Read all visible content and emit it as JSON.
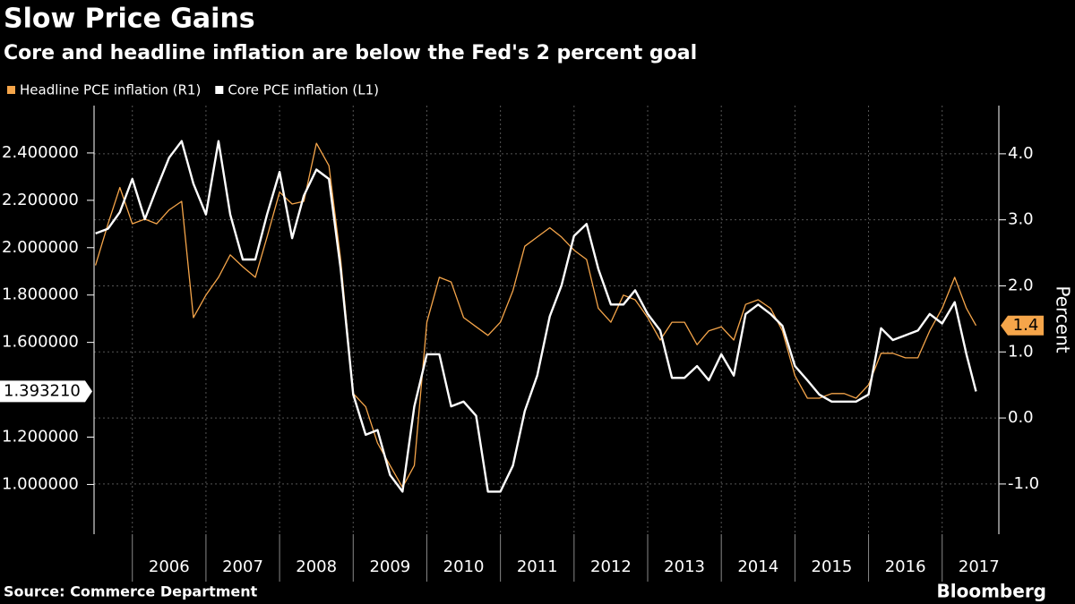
{
  "chart_data": {
    "type": "line",
    "title": "Slow Price Gains",
    "subtitle": "Core and headline inflation are below the Fed's 2 percent goal",
    "y2_label": "Percent",
    "source": "Source: Commerce Department",
    "brand": "Bloomberg",
    "xlim": [
      2005.48,
      2017.77
    ],
    "xticks": [
      2006,
      2007,
      2008,
      2009,
      2010,
      2011,
      2012,
      2013,
      2014,
      2015,
      2016,
      2017
    ],
    "ylim": [
      0.79,
      2.6
    ],
    "yticks": [
      {
        "value": 1.0,
        "label": "1.000000"
      },
      {
        "value": 1.2,
        "label": "1.200000"
      },
      {
        "value": 1.6,
        "label": "1.600000"
      },
      {
        "value": 1.8,
        "label": "1.800000"
      },
      {
        "value": 2.0,
        "label": "2.000000"
      },
      {
        "value": 2.2,
        "label": "2.200000"
      },
      {
        "value": 2.4,
        "label": "2.400000"
      }
    ],
    "y2lim": [
      -1.76,
      4.73
    ],
    "y2ticks": [
      {
        "value": -1,
        "label": "-1.0"
      },
      {
        "value": 0,
        "label": "0.0"
      },
      {
        "value": 1,
        "label": "1.0"
      },
      {
        "value": 2,
        "label": "2.0"
      },
      {
        "value": 3,
        "label": "3.0"
      },
      {
        "value": 4,
        "label": "4.0"
      }
    ],
    "grid": true,
    "x": [
      2005.5,
      2005.67,
      2005.83,
      2006.0,
      2006.17,
      2006.33,
      2006.5,
      2006.67,
      2006.83,
      2007.0,
      2007.17,
      2007.33,
      2007.5,
      2007.67,
      2007.83,
      2008.0,
      2008.17,
      2008.33,
      2008.5,
      2008.67,
      2008.83,
      2009.0,
      2009.17,
      2009.33,
      2009.5,
      2009.67,
      2009.83,
      2010.0,
      2010.17,
      2010.33,
      2010.5,
      2010.67,
      2010.83,
      2011.0,
      2011.17,
      2011.33,
      2011.5,
      2011.67,
      2011.83,
      2012.0,
      2012.17,
      2012.33,
      2012.5,
      2012.67,
      2012.83,
      2013.0,
      2013.17,
      2013.33,
      2013.5,
      2013.67,
      2013.83,
      2014.0,
      2014.17,
      2014.33,
      2014.5,
      2014.67,
      2014.83,
      2015.0,
      2015.17,
      2015.33,
      2015.5,
      2015.67,
      2015.83,
      2016.0,
      2016.17,
      2016.33,
      2016.5,
      2016.67,
      2016.83,
      2017.0,
      2017.17,
      2017.33,
      2017.46
    ],
    "series": [
      {
        "name": "Headline PCE inflation (R1)",
        "color": "#f5a54a",
        "axis": "y2",
        "last_label": "1.4",
        "values": [
          2.31,
          2.94,
          3.49,
          2.94,
          3.01,
          2.94,
          3.15,
          3.28,
          1.52,
          1.86,
          2.13,
          2.47,
          2.29,
          2.13,
          2.74,
          3.42,
          3.24,
          3.28,
          4.16,
          3.82,
          2.4,
          0.37,
          0.17,
          -0.38,
          -0.72,
          -1.05,
          -0.72,
          1.45,
          2.13,
          2.06,
          1.52,
          1.38,
          1.25,
          1.45,
          1.93,
          2.6,
          2.74,
          2.88,
          2.74,
          2.54,
          2.4,
          1.66,
          1.45,
          1.86,
          1.79,
          1.52,
          1.18,
          1.45,
          1.45,
          1.11,
          1.32,
          1.38,
          1.18,
          1.72,
          1.79,
          1.66,
          1.32,
          0.64,
          0.3,
          0.3,
          0.37,
          0.37,
          0.3,
          0.5,
          0.98,
          0.98,
          0.91,
          0.91,
          1.32,
          1.66,
          2.13,
          1.66,
          1.4
        ]
      },
      {
        "name": "Core PCE inflation (L1)",
        "color": "#ffffff",
        "axis": "y",
        "last_label": "1.393210",
        "values": [
          2.06,
          2.08,
          2.15,
          2.29,
          2.12,
          2.25,
          2.38,
          2.45,
          2.27,
          2.14,
          2.45,
          2.14,
          1.95,
          1.95,
          2.14,
          2.32,
          2.04,
          2.22,
          2.33,
          2.29,
          1.91,
          1.38,
          1.21,
          1.23,
          1.04,
          0.97,
          1.33,
          1.55,
          1.55,
          1.33,
          1.35,
          1.29,
          0.97,
          0.97,
          1.08,
          1.31,
          1.46,
          1.71,
          1.84,
          2.05,
          2.1,
          1.91,
          1.76,
          1.76,
          1.82,
          1.72,
          1.65,
          1.45,
          1.45,
          1.5,
          1.44,
          1.55,
          1.46,
          1.72,
          1.76,
          1.72,
          1.67,
          1.5,
          1.44,
          1.38,
          1.35,
          1.35,
          1.35,
          1.38,
          1.66,
          1.61,
          1.63,
          1.65,
          1.72,
          1.68,
          1.77,
          1.55,
          1.39321
        ]
      }
    ]
  }
}
